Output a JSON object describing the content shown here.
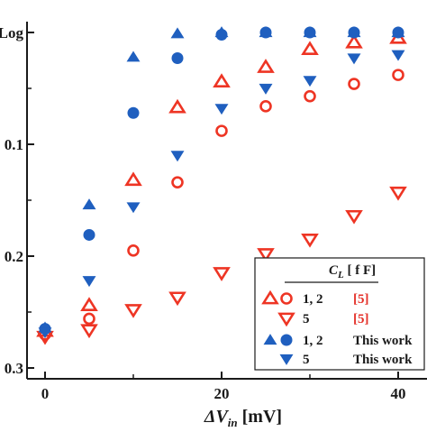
{
  "chart_data": {
    "type": "scatter",
    "title": "",
    "xlabel": "ΔV",
    "xlabel_sub": "in",
    "xlabel_unit": "[mV]",
    "ylabel_fragment": "Log",
    "xlim": [
      -2.5,
      43
    ],
    "ylim": [
      -0.302,
      0.0
    ],
    "x_ticks": [
      0,
      20,
      40
    ],
    "x_tick_labels": [
      "0",
      "20",
      "40"
    ],
    "y_ticks": [
      -0.1,
      -0.2,
      -0.3
    ],
    "y_tick_labels": [
      "0.1",
      "0.2",
      "0.3"
    ],
    "top_tick_label": "Log",
    "grid": false,
    "legend_position": "bottom-right",
    "legend_header": {
      "symbol": "C",
      "subscript": "L",
      "unit": "[ f F]"
    },
    "legend_rows": [
      {
        "values": "1,  2",
        "source": "[5]",
        "source_color": "#e4322b",
        "markers": [
          "triangle-open",
          "circle-open"
        ],
        "color": "#ee3524"
      },
      {
        "values": "5",
        "source": "[5]",
        "source_color": "#e4322b",
        "markers": [
          "down-triangle-open"
        ],
        "color": "#ee3524"
      },
      {
        "values": "1,  2",
        "source": "This work",
        "source_color": "#1a1a1a",
        "markers": [
          "triangle-filled",
          "circle-filled"
        ],
        "color": "#1f5fbf"
      },
      {
        "values": "5",
        "source": "This work",
        "source_color": "#1a1a1a",
        "markers": [
          "down-triangle-filled"
        ],
        "color": "#1f5fbf"
      }
    ],
    "series": [
      {
        "name": "1",
        "label_group": "[5]",
        "marker": "triangle-open",
        "color": "#ee3524",
        "x": [
          0,
          5,
          10,
          15,
          20,
          25,
          30,
          35,
          40
        ],
        "y": [
          -0.267,
          -0.244,
          -0.132,
          -0.067,
          -0.044,
          -0.031,
          -0.015,
          -0.009,
          -0.005
        ]
      },
      {
        "name": "2",
        "label_group": "[5]",
        "marker": "circle-open",
        "color": "#ee3524",
        "x": [
          0,
          5,
          10,
          15,
          20,
          25,
          30,
          35,
          40
        ],
        "y": [
          -0.27,
          -0.256,
          -0.195,
          -0.134,
          -0.088,
          -0.066,
          -0.057,
          -0.046,
          -0.038
        ]
      },
      {
        "name": "5",
        "label_group": "[5]",
        "marker": "down-triangle-open",
        "color": "#ee3524",
        "x": [
          0,
          5,
          10,
          15,
          20,
          25,
          30,
          35,
          40
        ],
        "y": [
          -0.272,
          -0.266,
          -0.248,
          -0.237,
          -0.215,
          -0.198,
          -0.185,
          -0.164,
          -0.143
        ]
      },
      {
        "name": "1",
        "label_group": "This work",
        "marker": "triangle-filled",
        "color": "#1f5fbf",
        "x": [
          0,
          5,
          10,
          15,
          20,
          25,
          30,
          35,
          40
        ],
        "y": [
          -0.264,
          -0.154,
          -0.022,
          -0.001,
          0.0,
          0.0,
          0.0,
          0.0,
          0.0
        ]
      },
      {
        "name": "2",
        "label_group": "This work",
        "marker": "circle-filled",
        "color": "#1f5fbf",
        "x": [
          0,
          5,
          10,
          15,
          20,
          25,
          30,
          35,
          40
        ],
        "y": [
          -0.265,
          -0.181,
          -0.072,
          -0.023,
          -0.002,
          0.0,
          0.0,
          0.0,
          0.0
        ]
      },
      {
        "name": "5",
        "label_group": "This work",
        "marker": "down-triangle-filled",
        "color": "#1f5fbf",
        "x": [
          0,
          5,
          10,
          15,
          20,
          25,
          30,
          35,
          40
        ],
        "y": [
          -0.268,
          -0.222,
          -0.156,
          -0.11,
          -0.068,
          -0.05,
          -0.043,
          -0.023,
          -0.02
        ]
      }
    ]
  }
}
